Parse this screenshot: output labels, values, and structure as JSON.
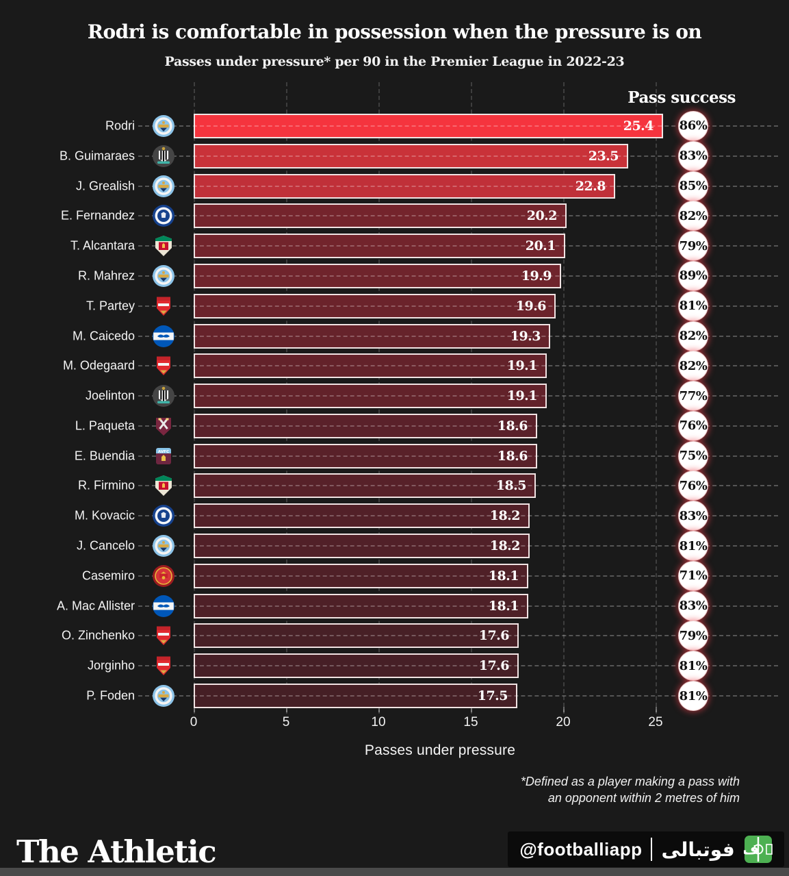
{
  "title": "Rodri is comfortable in possession when the pressure is on",
  "subtitle": "Passes under pressure* per 90 in the Premier League in 2022-23",
  "pass_success_header": "Pass success",
  "chart_data": {
    "type": "bar",
    "orientation": "horizontal",
    "title": "Passes under pressure* per 90 in the Premier League in 2022-23",
    "xlabel": "Passes under pressure",
    "x_ticks": [
      0,
      5,
      10,
      15,
      20,
      25
    ],
    "xlim": [
      0,
      27
    ],
    "grid": "vertical-dashed",
    "secondary_metric_label": "Pass success",
    "players": [
      {
        "name": "Rodri",
        "team": "Manchester City",
        "badge": "mancity",
        "value": 25.4,
        "pass_success": "86%",
        "bar_color": "#f5343e"
      },
      {
        "name": "B. Guimaraes",
        "team": "Newcastle United",
        "badge": "newcastle",
        "value": 23.5,
        "pass_success": "83%",
        "bar_color": "#c93239"
      },
      {
        "name": "J. Grealish",
        "team": "Manchester City",
        "badge": "mancity",
        "value": 22.8,
        "pass_success": "85%",
        "bar_color": "#c03039"
      },
      {
        "name": "E. Fernandez",
        "team": "Chelsea",
        "badge": "chelsea",
        "value": 20.2,
        "pass_success": "82%",
        "bar_color": "#74242c"
      },
      {
        "name": "T. Alcantara",
        "team": "Liverpool",
        "badge": "liverpool",
        "value": 20.1,
        "pass_success": "79%",
        "bar_color": "#72242c"
      },
      {
        "name": "R. Mahrez",
        "team": "Manchester City",
        "badge": "mancity",
        "value": 19.9,
        "pass_success": "89%",
        "bar_color": "#6f242c"
      },
      {
        "name": "T. Partey",
        "team": "Arsenal",
        "badge": "arsenal",
        "value": 19.6,
        "pass_success": "81%",
        "bar_color": "#6b232b"
      },
      {
        "name": "M. Caicedo",
        "team": "Brighton",
        "badge": "brighton",
        "value": 19.3,
        "pass_success": "82%",
        "bar_color": "#66232b"
      },
      {
        "name": "M. Odegaard",
        "team": "Arsenal",
        "badge": "arsenal",
        "value": 19.1,
        "pass_success": "82%",
        "bar_color": "#63222a"
      },
      {
        "name": "Joelinton",
        "team": "Newcastle United",
        "badge": "newcastle",
        "value": 19.1,
        "pass_success": "77%",
        "bar_color": "#62222a"
      },
      {
        "name": "L. Paqueta",
        "team": "West Ham United",
        "badge": "westham",
        "value": 18.6,
        "pass_success": "76%",
        "bar_color": "#5a212a"
      },
      {
        "name": "E. Buendia",
        "team": "Aston Villa",
        "badge": "astonvilla",
        "value": 18.6,
        "pass_success": "75%",
        "bar_color": "#592129"
      },
      {
        "name": "R. Firmino",
        "team": "Liverpool",
        "badge": "liverpool",
        "value": 18.5,
        "pass_success": "76%",
        "bar_color": "#572129"
      },
      {
        "name": "M. Kovacic",
        "team": "Chelsea",
        "badge": "chelsea",
        "value": 18.2,
        "pass_success": "83%",
        "bar_color": "#522028"
      },
      {
        "name": "J. Cancelo",
        "team": "Manchester City",
        "badge": "mancity",
        "value": 18.2,
        "pass_success": "81%",
        "bar_color": "#512028"
      },
      {
        "name": "Casemiro",
        "team": "Manchester United",
        "badge": "manutd",
        "value": 18.1,
        "pass_success": "71%",
        "bar_color": "#4f2027"
      },
      {
        "name": "A. Mac Allister",
        "team": "Brighton",
        "badge": "brighton",
        "value": 18.1,
        "pass_success": "83%",
        "bar_color": "#4e2027"
      },
      {
        "name": "O. Zinchenko",
        "team": "Arsenal",
        "badge": "arsenal",
        "value": 17.6,
        "pass_success": "79%",
        "bar_color": "#472026"
      },
      {
        "name": "Jorginho",
        "team": "Arsenal",
        "badge": "arsenal",
        "value": 17.6,
        "pass_success": "81%",
        "bar_color": "#461f26"
      },
      {
        "name": "P. Foden",
        "team": "Manchester City",
        "badge": "mancity",
        "value": 17.5,
        "pass_success": "81%",
        "bar_color": "#451f25"
      }
    ]
  },
  "footnote": {
    "line1": "*Defined as a player making a pass with",
    "line2": "an opponent within 2 metres of him"
  },
  "footer": {
    "brand": "The Athletic",
    "handle": "@footballiapp",
    "persian": "فوتبالی",
    "icon": "football-pitch-icon"
  }
}
